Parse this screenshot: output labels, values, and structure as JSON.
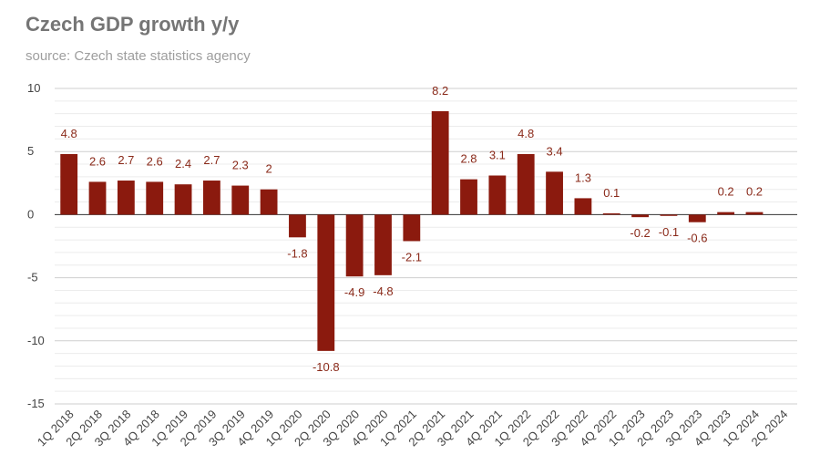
{
  "chart_data": {
    "type": "bar",
    "title": "Czech GDP growth y/y",
    "subtitle": "source: Czech state statistics agency",
    "categories": [
      "1Q 2018",
      "2Q 2018",
      "3Q 2018",
      "4Q 2018",
      "1Q 2019",
      "2Q 2019",
      "3Q 2019",
      "4Q 2019",
      "1Q 2020",
      "2Q 2020",
      "3Q 2020",
      "4Q 2020",
      "1Q 2021",
      "2Q 2021",
      "3Q 2021",
      "4Q 2021",
      "1Q 2022",
      "2Q 2022",
      "3Q 2022",
      "4Q 2022",
      "1Q 2023",
      "2Q 2023",
      "3Q 2023",
      "4Q 2023",
      "1Q 2024",
      "2Q 2024"
    ],
    "values": [
      4.8,
      2.6,
      2.7,
      2.6,
      2.4,
      2.7,
      2.3,
      2,
      -1.8,
      -10.8,
      -4.9,
      -4.8,
      -2.1,
      8.2,
      2.8,
      3.1,
      4.8,
      3.4,
      1.3,
      0.1,
      -0.2,
      -0.1,
      -0.6,
      0.2,
      0.2,
      null
    ],
    "color": "#8b1a0e",
    "ylim": [
      -15,
      10
    ],
    "yticks": [
      -15,
      -10,
      -5,
      0,
      5,
      10
    ],
    "grid": true
  }
}
